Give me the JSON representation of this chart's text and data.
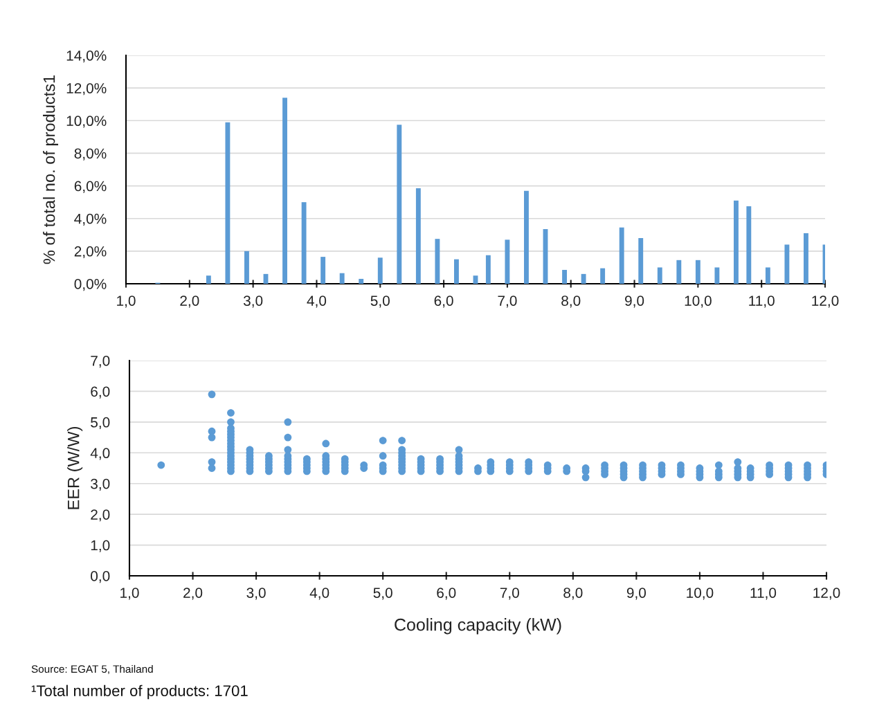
{
  "chart_data": [
    {
      "type": "bar",
      "ylabel": "% of total no. of products1",
      "color": "#5b9bd5",
      "grid": "y",
      "x": [
        1.5,
        2.3,
        2.6,
        2.9,
        3.2,
        3.5,
        3.8,
        4.1,
        4.4,
        4.7,
        5.0,
        5.3,
        5.6,
        5.9,
        6.2,
        6.5,
        6.7,
        7.0,
        7.3,
        7.6,
        7.9,
        8.2,
        8.5,
        8.8,
        9.1,
        9.4,
        9.7,
        10.0,
        10.3,
        10.6,
        10.8,
        11.1,
        11.4,
        11.7,
        12.0
      ],
      "values": [
        0.06,
        0.5,
        9.9,
        2.0,
        0.6,
        11.4,
        5.0,
        1.65,
        0.65,
        0.3,
        1.6,
        9.75,
        5.85,
        2.75,
        1.5,
        0.5,
        1.75,
        2.7,
        5.7,
        3.35,
        0.85,
        0.6,
        0.95,
        3.45,
        2.8,
        1.0,
        1.45,
        1.45,
        1.0,
        5.1,
        4.75,
        1.0,
        2.4,
        3.1,
        2.4
      ],
      "xlim": [
        1,
        12
      ],
      "xticks": [
        {
          "value": 1,
          "label": "1,0"
        },
        {
          "value": 2,
          "label": "2,0"
        },
        {
          "value": 3,
          "label": "3,0"
        },
        {
          "value": 4,
          "label": "4,0"
        },
        {
          "value": 5,
          "label": "5,0"
        },
        {
          "value": 6,
          "label": "6,0"
        },
        {
          "value": 7,
          "label": "7,0"
        },
        {
          "value": 8,
          "label": "8,0"
        },
        {
          "value": 9,
          "label": "9,0"
        },
        {
          "value": 10,
          "label": "10,0"
        },
        {
          "value": 11,
          "label": "11,0"
        },
        {
          "value": 12,
          "label": "12,0"
        }
      ],
      "ylim": [
        0,
        14
      ],
      "yticks": [
        {
          "value": 0,
          "label": "0,0%"
        },
        {
          "value": 2,
          "label": "2,0%"
        },
        {
          "value": 4,
          "label": "4,0%"
        },
        {
          "value": 6,
          "label": "6,0%"
        },
        {
          "value": 8,
          "label": "8,0%"
        },
        {
          "value": 10,
          "label": "10,0%"
        },
        {
          "value": 12,
          "label": "12,0%"
        },
        {
          "value": 14,
          "label": "14,0%"
        }
      ]
    },
    {
      "type": "scatter",
      "xlabel": "Cooling capacity (kW)",
      "ylabel": "EER (W/W)",
      "color": "#5b9bd5",
      "grid": "y",
      "marker": "circle",
      "x": [
        1.5,
        2.3,
        2.3,
        2.3,
        2.3,
        2.3,
        2.6,
        2.6,
        2.6,
        2.6,
        2.6,
        2.6,
        2.6,
        2.6,
        2.6,
        2.6,
        2.6,
        2.6,
        2.6,
        2.6,
        2.6,
        2.6,
        2.6,
        2.9,
        2.9,
        2.9,
        2.9,
        2.9,
        2.9,
        2.9,
        2.9,
        3.2,
        3.2,
        3.2,
        3.2,
        3.2,
        3.2,
        3.5,
        3.5,
        3.5,
        3.5,
        3.5,
        3.5,
        3.5,
        3.5,
        3.5,
        3.8,
        3.8,
        3.8,
        3.8,
        3.8,
        4.1,
        4.1,
        4.1,
        4.1,
        4.1,
        4.1,
        4.1,
        4.4,
        4.4,
        4.4,
        4.4,
        4.4,
        4.7,
        4.7,
        5.0,
        5.0,
        5.0,
        5.0,
        5.0,
        5.3,
        5.3,
        5.3,
        5.3,
        5.3,
        5.3,
        5.3,
        5.3,
        5.3,
        5.6,
        5.6,
        5.6,
        5.6,
        5.6,
        5.9,
        5.9,
        5.9,
        5.9,
        5.9,
        6.2,
        6.2,
        6.2,
        6.2,
        6.2,
        6.2,
        6.2,
        6.5,
        6.5,
        6.7,
        6.7,
        6.7,
        6.7,
        7.0,
        7.0,
        7.0,
        7.0,
        7.3,
        7.3,
        7.3,
        7.3,
        7.6,
        7.6,
        7.6,
        7.9,
        7.9,
        8.2,
        8.2,
        8.2,
        8.5,
        8.5,
        8.5,
        8.5,
        8.8,
        8.8,
        8.8,
        8.8,
        8.8,
        9.1,
        9.1,
        9.1,
        9.1,
        9.1,
        9.4,
        9.4,
        9.4,
        9.4,
        9.7,
        9.7,
        9.7,
        9.7,
        10.0,
        10.0,
        10.0,
        10.0,
        10.3,
        10.3,
        10.3,
        10.3,
        10.6,
        10.6,
        10.6,
        10.6,
        10.6,
        10.8,
        10.8,
        10.8,
        10.8,
        11.1,
        11.1,
        11.1,
        11.1,
        11.4,
        11.4,
        11.4,
        11.4,
        11.4,
        11.7,
        11.7,
        11.7,
        11.7,
        11.7,
        12.0,
        12.0,
        12.0,
        12.0
      ],
      "values": [
        3.6,
        5.9,
        4.7,
        4.5,
        3.7,
        3.5,
        5.3,
        5.0,
        4.8,
        4.7,
        4.6,
        4.5,
        4.4,
        4.3,
        4.2,
        4.1,
        4.0,
        3.9,
        3.8,
        3.7,
        3.6,
        3.5,
        3.4,
        4.1,
        4.0,
        3.9,
        3.8,
        3.7,
        3.6,
        3.5,
        3.4,
        3.9,
        3.8,
        3.7,
        3.6,
        3.5,
        3.4,
        5.0,
        4.5,
        4.1,
        3.9,
        3.8,
        3.7,
        3.6,
        3.5,
        3.4,
        3.8,
        3.7,
        3.6,
        3.5,
        3.4,
        4.3,
        3.9,
        3.8,
        3.7,
        3.6,
        3.5,
        3.4,
        3.8,
        3.7,
        3.6,
        3.5,
        3.4,
        3.6,
        3.5,
        4.4,
        3.9,
        3.6,
        3.5,
        3.4,
        4.4,
        4.1,
        4.0,
        3.9,
        3.8,
        3.7,
        3.6,
        3.5,
        3.4,
        3.8,
        3.7,
        3.6,
        3.5,
        3.4,
        3.8,
        3.7,
        3.6,
        3.5,
        3.4,
        4.1,
        3.9,
        3.8,
        3.7,
        3.6,
        3.5,
        3.4,
        3.5,
        3.4,
        3.7,
        3.6,
        3.5,
        3.4,
        3.7,
        3.6,
        3.5,
        3.4,
        3.7,
        3.6,
        3.5,
        3.4,
        3.6,
        3.5,
        3.4,
        3.5,
        3.4,
        3.5,
        3.4,
        3.2,
        3.6,
        3.5,
        3.4,
        3.3,
        3.6,
        3.5,
        3.4,
        3.3,
        3.2,
        3.6,
        3.5,
        3.4,
        3.3,
        3.2,
        3.6,
        3.5,
        3.4,
        3.3,
        3.6,
        3.5,
        3.4,
        3.3,
        3.5,
        3.4,
        3.3,
        3.2,
        3.6,
        3.4,
        3.3,
        3.2,
        3.7,
        3.5,
        3.4,
        3.3,
        3.2,
        3.5,
        3.4,
        3.3,
        3.2,
        3.6,
        3.5,
        3.4,
        3.3,
        3.6,
        3.5,
        3.4,
        3.3,
        3.2,
        3.6,
        3.5,
        3.4,
        3.3,
        3.2,
        3.6,
        3.5,
        3.4,
        3.3
      ],
      "xlim": [
        1,
        12
      ],
      "xticks": [
        {
          "value": 1,
          "label": "1,0"
        },
        {
          "value": 2,
          "label": "2,0"
        },
        {
          "value": 3,
          "label": "3,0"
        },
        {
          "value": 4,
          "label": "4,0"
        },
        {
          "value": 5,
          "label": "5,0"
        },
        {
          "value": 6,
          "label": "6,0"
        },
        {
          "value": 7,
          "label": "7,0"
        },
        {
          "value": 8,
          "label": "8,0"
        },
        {
          "value": 9,
          "label": "9,0"
        },
        {
          "value": 10,
          "label": "10,0"
        },
        {
          "value": 11,
          "label": "11,0"
        },
        {
          "value": 12,
          "label": "12,0"
        }
      ],
      "ylim": [
        0,
        7
      ],
      "yticks": [
        {
          "value": 0,
          "label": "0,0"
        },
        {
          "value": 1,
          "label": "1,0"
        },
        {
          "value": 2,
          "label": "2,0"
        },
        {
          "value": 3,
          "label": "3,0"
        },
        {
          "value": 4,
          "label": "4,0"
        },
        {
          "value": 5,
          "label": "5,0"
        },
        {
          "value": 6,
          "label": "6,0"
        },
        {
          "value": 7,
          "label": "7,0"
        }
      ],
      "annotations": [
        "Source: EGAT 5, Thailand",
        "¹Total number of products: 1701"
      ]
    }
  ]
}
